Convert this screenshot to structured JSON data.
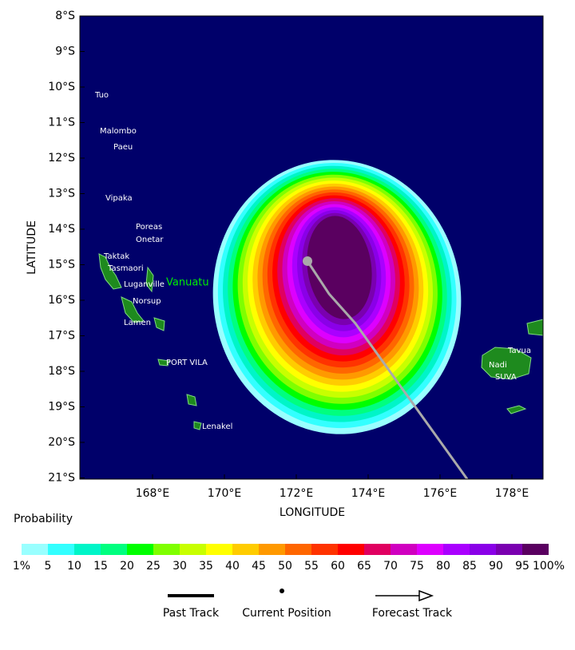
{
  "map": {
    "latitude_ticks": [
      "8°S",
      "9°S",
      "10°S",
      "11°S",
      "12°S",
      "13°S",
      "14°S",
      "15°S",
      "16°S",
      "17°S",
      "18°S",
      "19°S",
      "20°S",
      "21°S"
    ],
    "longitude_ticks": [
      "168°E",
      "170°E",
      "172°E",
      "174°E",
      "176°E",
      "178°E"
    ],
    "y_axis_title": "LATITUDE",
    "x_axis_title": "LONGITUDE",
    "places": [
      "Tuo",
      "Malombo",
      "Paeu",
      "Vipaka",
      "Poreas",
      "Onetar",
      "Taktak",
      "Tasmaori",
      "Luganville",
      "Norsup",
      "Lamen",
      "PORT VILA",
      "Lenakel",
      "Vanuatu",
      "Tavua",
      "Nadi",
      "SUVA"
    ]
  },
  "colorbar": {
    "title": "Probability",
    "labels": [
      "1%",
      "5",
      "10",
      "15",
      "20",
      "25",
      "30",
      "35",
      "40",
      "45",
      "50",
      "55",
      "60",
      "65",
      "70",
      "75",
      "80",
      "85",
      "90",
      "95",
      "100%"
    ],
    "colors": [
      "#99ffff",
      "#33ffff",
      "#00f5c8",
      "#00ff7f",
      "#00ff00",
      "#7fff00",
      "#c8ff00",
      "#ffff00",
      "#ffcc00",
      "#ff9900",
      "#ff6600",
      "#ff3300",
      "#ff0000",
      "#e00060",
      "#d000c0",
      "#dd00ff",
      "#aa00ff",
      "#8a00e8",
      "#7a00b0",
      "#5a0060"
    ]
  },
  "legend": {
    "items": [
      "Past Track",
      "Current Position",
      "Forecast Track"
    ]
  }
}
